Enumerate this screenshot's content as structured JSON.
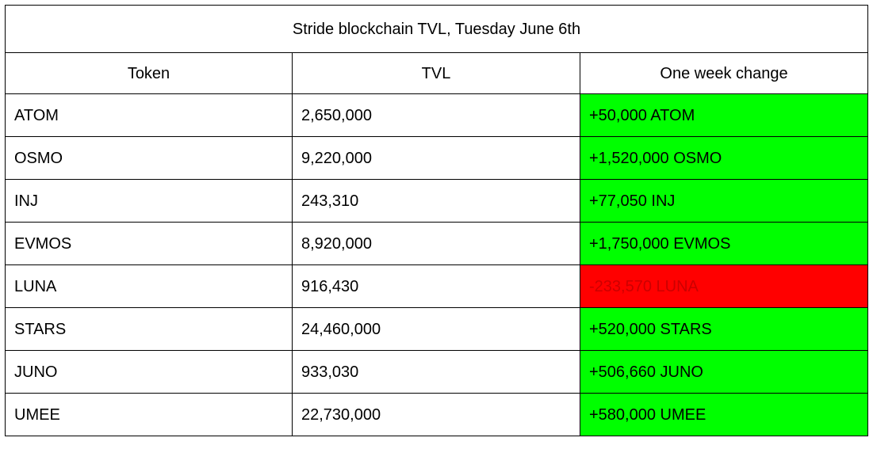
{
  "table": {
    "title": "Stride blockchain TVL, Tuesday June 6th",
    "headers": [
      "Token",
      "TVL",
      "One week change"
    ],
    "colors": {
      "positive": "#00ff00",
      "negative": "#ff0000",
      "negative_text": "#cc0000",
      "border": "#000000"
    },
    "rows": [
      {
        "token": "ATOM",
        "tvl": "2,650,000",
        "change": "+50,000 ATOM",
        "direction": "up"
      },
      {
        "token": "OSMO",
        "tvl": "9,220,000",
        "change": "+1,520,000 OSMO",
        "direction": "up"
      },
      {
        "token": "INJ",
        "tvl": "243,310",
        "change": "+77,050 INJ",
        "direction": "up"
      },
      {
        "token": "EVMOS",
        "tvl": "8,920,000",
        "change": "+1,750,000 EVMOS",
        "direction": "up"
      },
      {
        "token": "LUNA",
        "tvl": "916,430",
        "change": "-233,570 LUNA",
        "direction": "down"
      },
      {
        "token": "STARS",
        "tvl": "24,460,000",
        "change": "+520,000 STARS",
        "direction": "up"
      },
      {
        "token": "JUNO",
        "tvl": "933,030",
        "change": "+506,660 JUNO",
        "direction": "up"
      },
      {
        "token": "UMEE",
        "tvl": "22,730,000",
        "change": "+580,000 UMEE",
        "direction": "up"
      }
    ]
  }
}
